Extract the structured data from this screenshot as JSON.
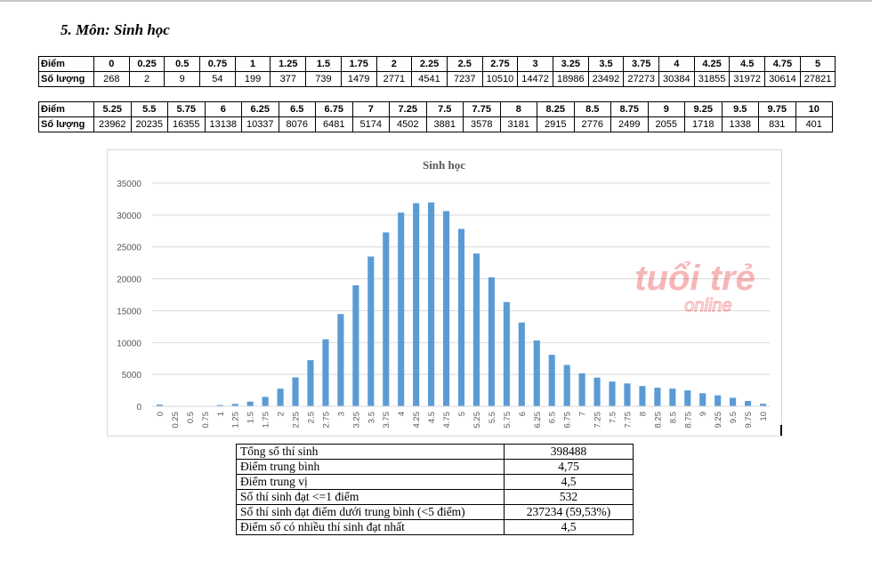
{
  "heading": "5.  Môn: Sinh học",
  "row_labels": {
    "score": "Điểm",
    "count": "Số lượng"
  },
  "table1": {
    "scores": [
      "0",
      "0.25",
      "0.5",
      "0.75",
      "1",
      "1.25",
      "1.5",
      "1.75",
      "2",
      "2.25",
      "2.5",
      "2.75",
      "3",
      "3.25",
      "3.5",
      "3.75",
      "4",
      "4.25",
      "4.5",
      "4.75",
      "5"
    ],
    "counts": [
      "268",
      "2",
      "9",
      "54",
      "199",
      "377",
      "739",
      "1479",
      "2771",
      "4541",
      "7237",
      "10510",
      "14472",
      "18986",
      "23492",
      "27273",
      "30384",
      "31855",
      "31972",
      "30614",
      "27821"
    ]
  },
  "table2": {
    "scores": [
      "5.25",
      "5.5",
      "5.75",
      "6",
      "6.25",
      "6.5",
      "6.75",
      "7",
      "7.25",
      "7.5",
      "7.75",
      "8",
      "8.25",
      "8.5",
      "8.75",
      "9",
      "9.25",
      "9.5",
      "9.75",
      "10"
    ],
    "counts": [
      "23962",
      "20235",
      "16355",
      "13138",
      "10337",
      "8076",
      "6481",
      "5174",
      "4502",
      "3881",
      "3578",
      "3181",
      "2915",
      "2776",
      "2499",
      "2055",
      "1718",
      "1338",
      "831",
      "401"
    ]
  },
  "chart_data": {
    "type": "bar",
    "title": "Sinh học",
    "xlabel": "",
    "ylabel": "",
    "ylim": [
      0,
      35000
    ],
    "yticks": [
      0,
      5000,
      10000,
      15000,
      20000,
      25000,
      30000,
      35000
    ],
    "grid": true,
    "legend": "none",
    "bar_color": "#5b9bd5",
    "categories": [
      "0",
      "0.25",
      "0.5",
      "0.75",
      "1",
      "1.25",
      "1.5",
      "1.75",
      "2",
      "2.25",
      "2.5",
      "2.75",
      "3",
      "3.25",
      "3.5",
      "3.75",
      "4",
      "4.25",
      "4.5",
      "4.75",
      "5",
      "5.25",
      "5.5",
      "5.75",
      "6",
      "6.25",
      "6.5",
      "6.75",
      "7",
      "7.25",
      "7.5",
      "7.75",
      "8",
      "8.25",
      "8.5",
      "8.75",
      "9",
      "9.25",
      "9.5",
      "9.75",
      "10"
    ],
    "values": [
      268,
      2,
      9,
      54,
      199,
      377,
      739,
      1479,
      2771,
      4541,
      7237,
      10510,
      14472,
      18986,
      23492,
      27273,
      30384,
      31855,
      31972,
      30614,
      27821,
      23962,
      20235,
      16355,
      13138,
      10337,
      8076,
      6481,
      5174,
      4502,
      3881,
      3578,
      3181,
      2915,
      2776,
      2499,
      2055,
      1718,
      1338,
      831,
      401
    ]
  },
  "watermark": {
    "brand_top": "tuổi trẻ",
    "brand_bottom": "online",
    "color": "#e8262c"
  },
  "stats": [
    {
      "label": "Tổng số thí sinh",
      "value": "398488"
    },
    {
      "label": "Điểm trung bình",
      "value": "4,75"
    },
    {
      "label": "Điểm trung vị",
      "value": "4,5"
    },
    {
      "label": "Số thí sinh đạt <=1 điểm",
      "value": "532"
    },
    {
      "label": "Số thí sinh đạt điểm dưới trung bình (<5 điểm)",
      "value": "237234 (59,53%)"
    },
    {
      "label": "Điểm số có nhiều thí sinh đạt nhất",
      "value": "4,5"
    }
  ]
}
